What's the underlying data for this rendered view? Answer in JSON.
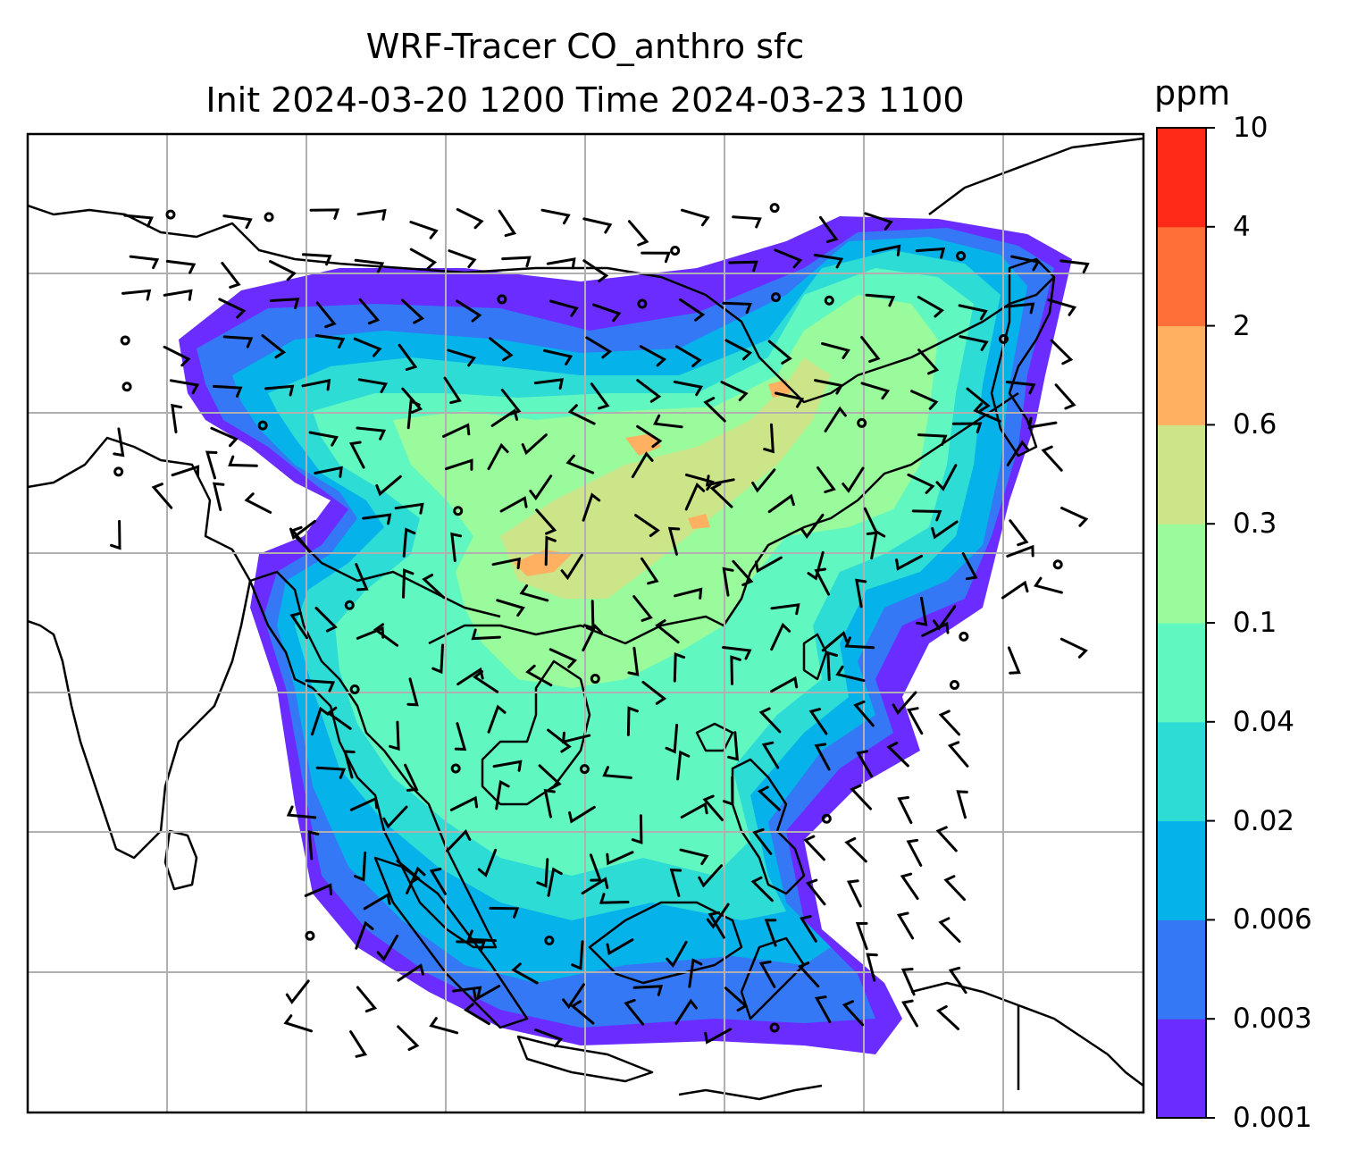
{
  "title": {
    "line1": "WRF-Tracer CO_anthro sfc",
    "line2": "Init 2024-03-20 1200 Time 2024-03-23 1100"
  },
  "colorbar": {
    "unit": "ppm",
    "levels": [
      "0.001",
      "0.003",
      "0.006",
      "0.02",
      "0.04",
      "0.1",
      "0.3",
      "0.6",
      "2",
      "4",
      "10"
    ],
    "colors": [
      "#6a2cff",
      "#3478f5",
      "#06b2ea",
      "#2edcd6",
      "#60f8c0",
      "#99fb9c",
      "#cde589",
      "#ffb060",
      "#ff7038",
      "#ff2a18"
    ]
  },
  "map": {
    "field": "CO_anthro",
    "level": "sfc",
    "gridlines": true,
    "wind_barbs": true
  }
}
